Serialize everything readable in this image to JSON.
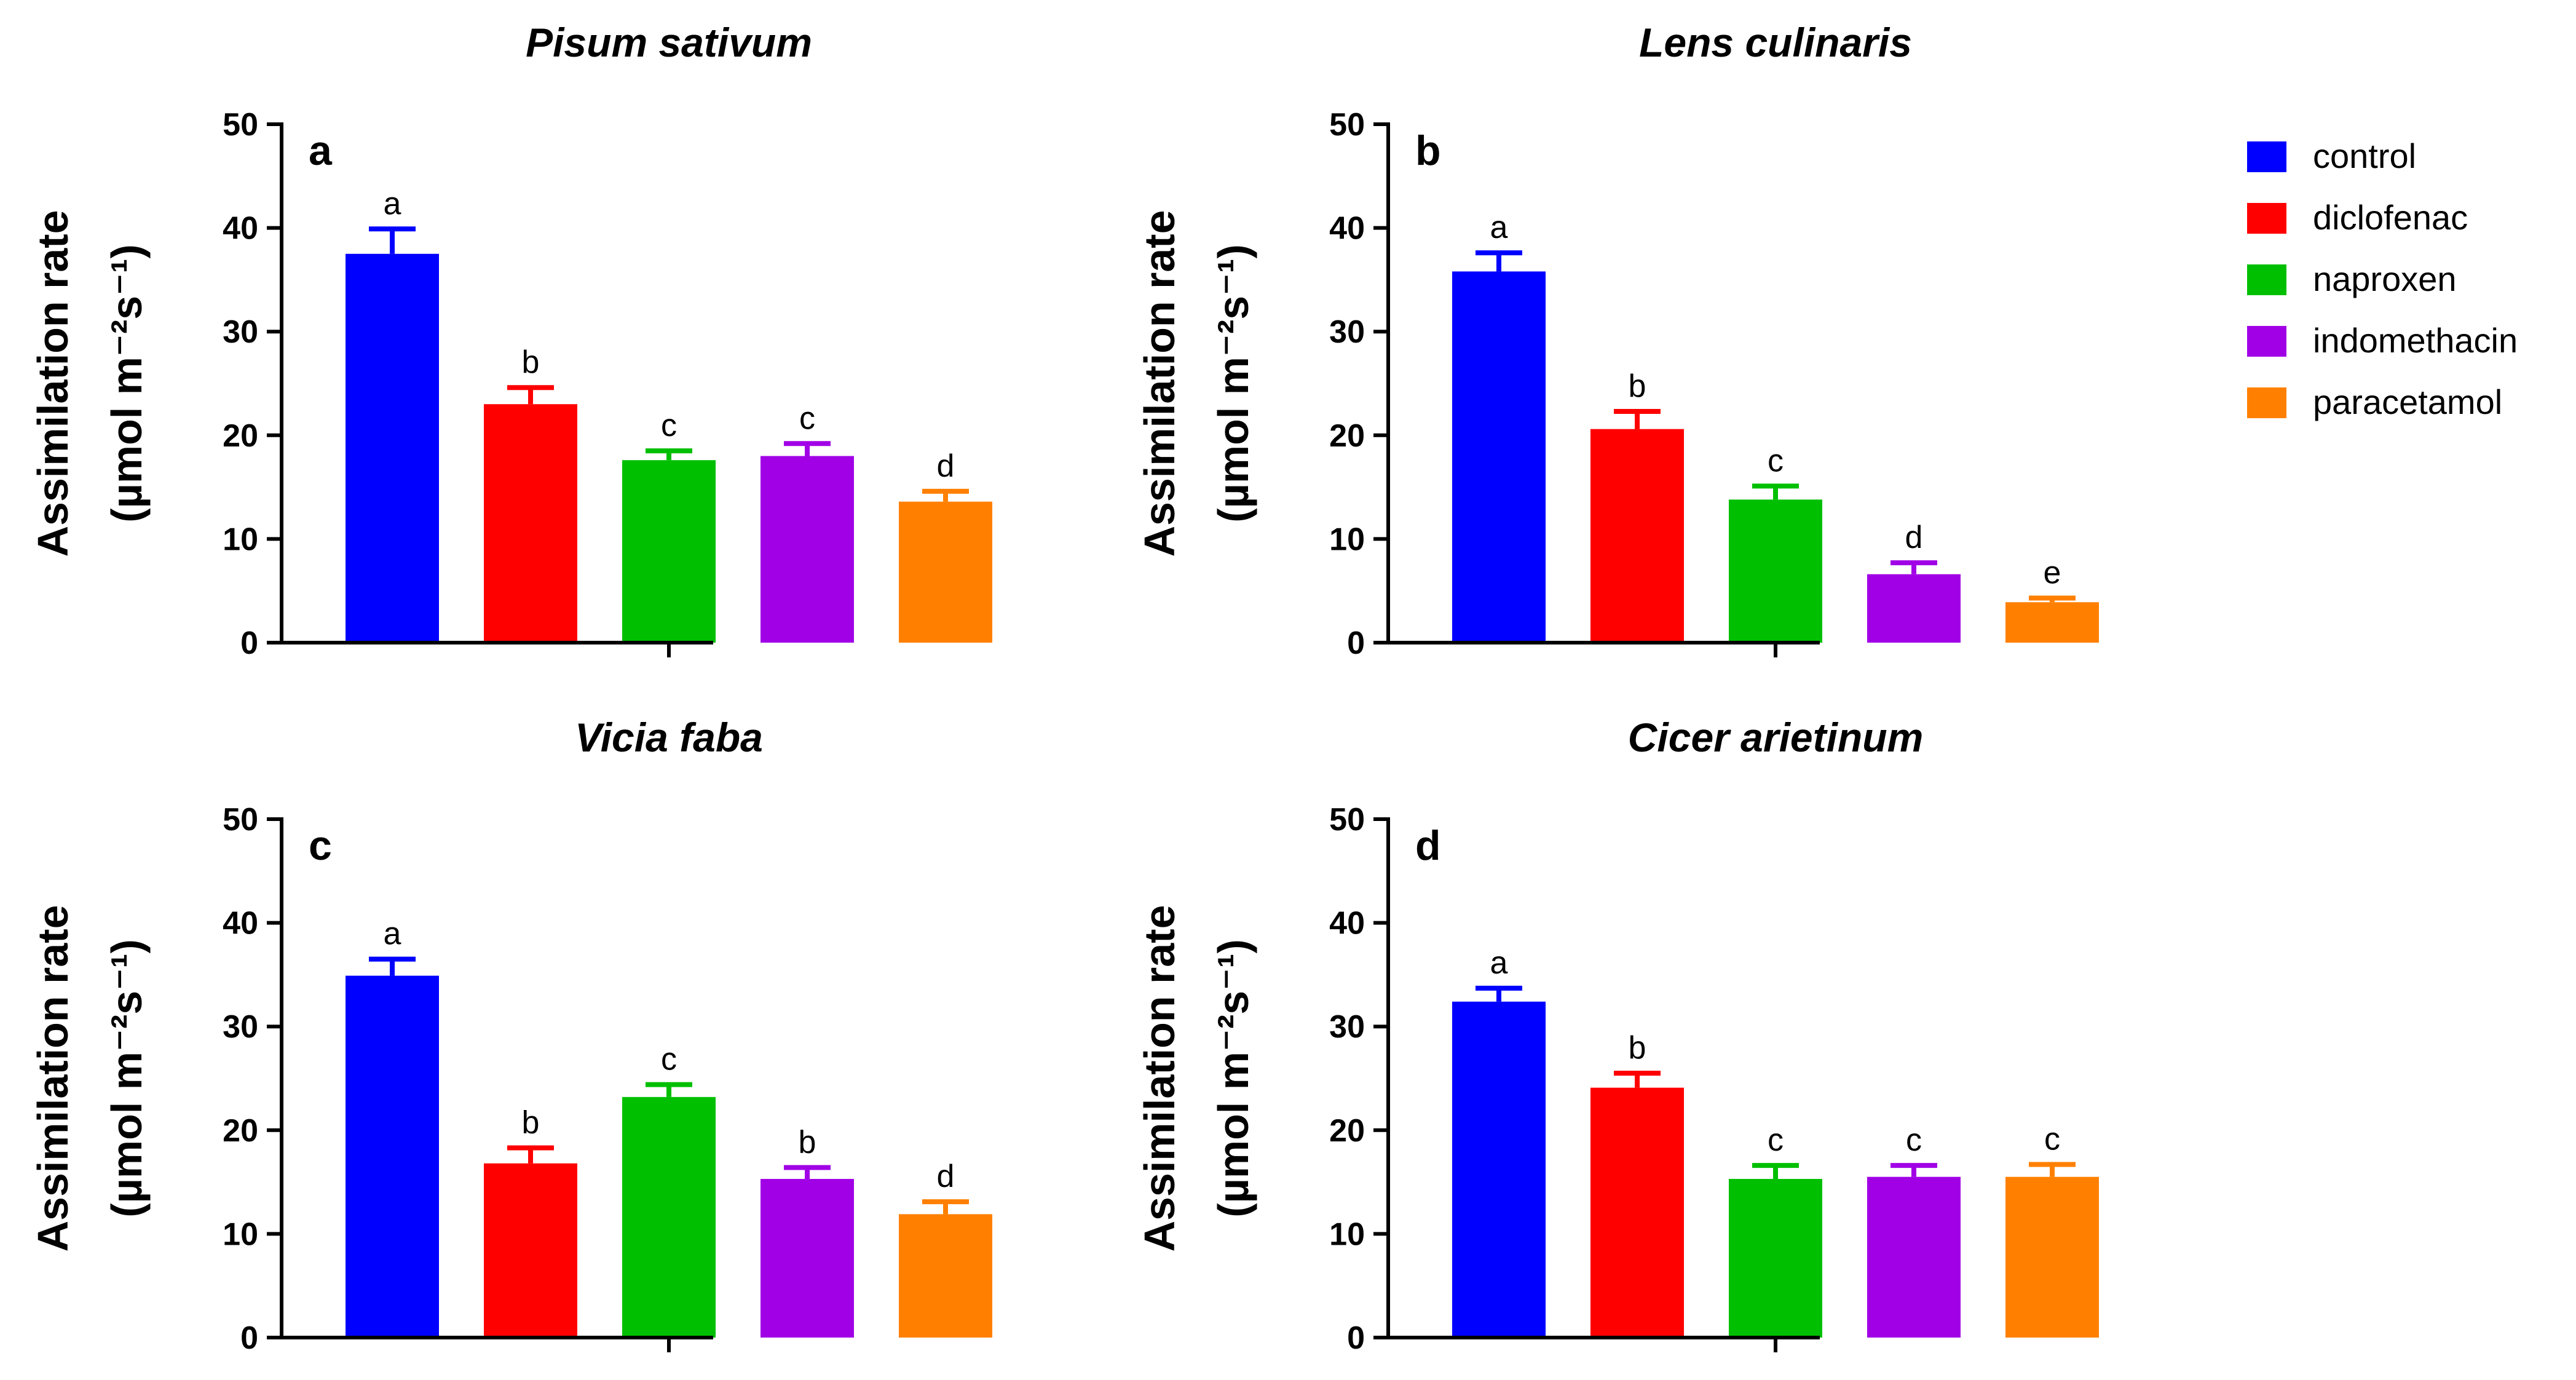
{
  "legend": [
    {
      "label": "control",
      "color": "#0000ff"
    },
    {
      "label": "diclofenac",
      "color": "#ff0000"
    },
    {
      "label": "naproxen",
      "color": "#00bf00"
    },
    {
      "label": "indomethacin",
      "color": "#a100e6"
    },
    {
      "label": "paracetamol",
      "color": "#ff8000"
    }
  ],
  "chart_data": [
    {
      "type": "bar",
      "title": "Pisum sativum",
      "panel_label": "a",
      "ylabel_line1": "Assimilation rate",
      "ylabel_line2": "(µmol m⁻²s⁻¹)",
      "ylim": [
        0,
        50
      ],
      "yticks": [
        "0",
        "10",
        "20",
        "30",
        "40",
        "50"
      ],
      "categories": [
        "control",
        "diclofenac",
        "naproxen",
        "indomethacin",
        "paracetamol"
      ],
      "values": [
        37.5,
        23.0,
        17.6,
        18.0,
        13.6
      ],
      "errors": [
        2.4,
        1.6,
        0.9,
        1.2,
        1.0
      ],
      "letters": [
        "a",
        "b",
        "c",
        "c",
        "d"
      ]
    },
    {
      "type": "bar",
      "title": "Lens culinaris",
      "panel_label": "b",
      "ylabel_line1": "Assimilation rate",
      "ylabel_line2": "(µmol m⁻²s⁻¹)",
      "ylim": [
        0,
        50
      ],
      "yticks": [
        "0",
        "10",
        "20",
        "30",
        "40",
        "50"
      ],
      "categories": [
        "control",
        "diclofenac",
        "naproxen",
        "indomethacin",
        "paracetamol"
      ],
      "values": [
        35.8,
        20.6,
        13.8,
        6.6,
        3.9
      ],
      "errors": [
        1.8,
        1.7,
        1.3,
        1.1,
        0.4
      ],
      "letters": [
        "a",
        "b",
        "c",
        "d",
        "e"
      ]
    },
    {
      "type": "bar",
      "title": "Vicia faba",
      "panel_label": "c",
      "ylabel_line1": "Assimilation rate",
      "ylabel_line2": "(µmol m⁻²s⁻¹)",
      "ylim": [
        0,
        50
      ],
      "yticks": [
        "0",
        "10",
        "20",
        "30",
        "40",
        "50"
      ],
      "categories": [
        "control",
        "diclofenac",
        "naproxen",
        "indomethacin",
        "paracetamol"
      ],
      "values": [
        34.9,
        16.8,
        23.2,
        15.3,
        11.9
      ],
      "errors": [
        1.6,
        1.5,
        1.2,
        1.1,
        1.2
      ],
      "letters": [
        "a",
        "b",
        "c",
        "b",
        "d"
      ]
    },
    {
      "type": "bar",
      "title": "Cicer arietinum",
      "panel_label": "d",
      "ylabel_line1": "Assimilation rate",
      "ylabel_line2": "(µmol m⁻²s⁻¹)",
      "ylim": [
        0,
        50
      ],
      "yticks": [
        "0",
        "10",
        "20",
        "30",
        "40",
        "50"
      ],
      "categories": [
        "control",
        "diclofenac",
        "naproxen",
        "indomethacin",
        "paracetamol"
      ],
      "values": [
        32.4,
        24.1,
        15.3,
        15.5,
        15.5
      ],
      "errors": [
        1.3,
        1.4,
        1.3,
        1.1,
        1.2
      ],
      "letters": [
        "a",
        "b",
        "c",
        "c",
        "c"
      ]
    }
  ]
}
